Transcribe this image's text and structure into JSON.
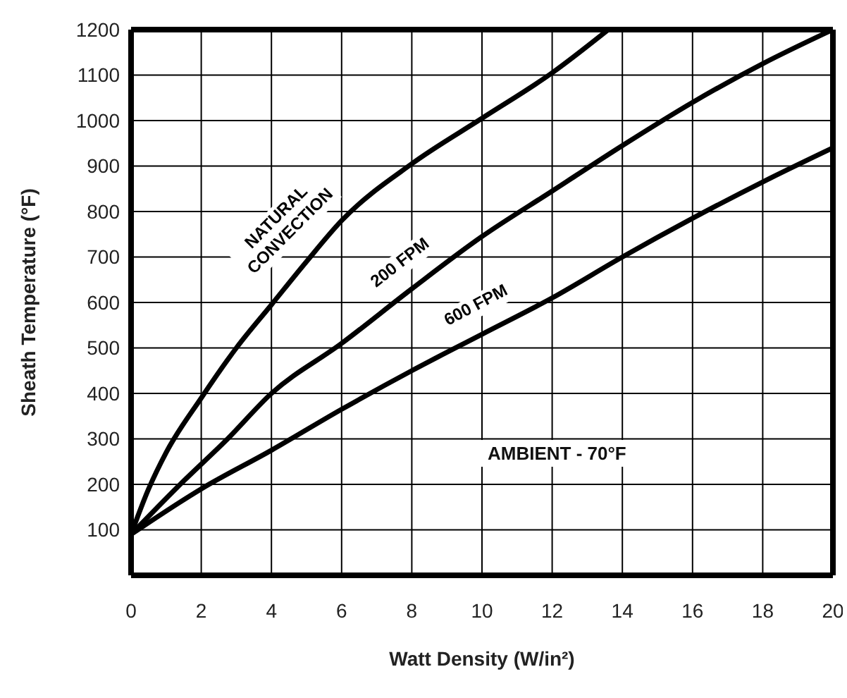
{
  "chart_data": {
    "type": "line",
    "xlabel": "Watt Density (W/in²)",
    "ylabel": "Sheath Temperature (°F)",
    "xlim": [
      0,
      20
    ],
    "xticks": [
      0,
      2,
      4,
      6,
      8,
      10,
      12,
      14,
      16,
      18,
      20
    ],
    "ylim": [
      0,
      1200
    ],
    "yticks": [
      100,
      200,
      300,
      400,
      500,
      600,
      700,
      800,
      900,
      1000,
      1100,
      1200
    ],
    "grid": true,
    "marker": "none",
    "line_style": "solid",
    "annotations": [
      "AMBIENT - 70°F"
    ],
    "series": [
      {
        "name": "NATURAL CONVECTION",
        "color": "#000000",
        "x": [
          0,
          0.5,
          1,
          2,
          3,
          4,
          5,
          6,
          8,
          10,
          12,
          13.6
        ],
        "values": [
          90,
          190,
          270,
          390,
          500,
          595,
          690,
          780,
          905,
          1005,
          1105,
          1200
        ]
      },
      {
        "name": "200 FPM",
        "color": "#000000",
        "x": [
          0,
          1.4,
          2.75,
          4,
          6,
          8,
          10,
          12,
          14,
          16,
          18,
          20
        ],
        "values": [
          90,
          200,
          300,
          400,
          510,
          630,
          745,
          845,
          945,
          1040,
          1125,
          1200
        ]
      },
      {
        "name": "600 FPM",
        "color": "#000000",
        "x": [
          0,
          2,
          4,
          6,
          8,
          10,
          12,
          14,
          16,
          18,
          20
        ],
        "values": [
          90,
          190,
          275,
          365,
          450,
          530,
          610,
          700,
          785,
          865,
          940
        ]
      }
    ]
  }
}
